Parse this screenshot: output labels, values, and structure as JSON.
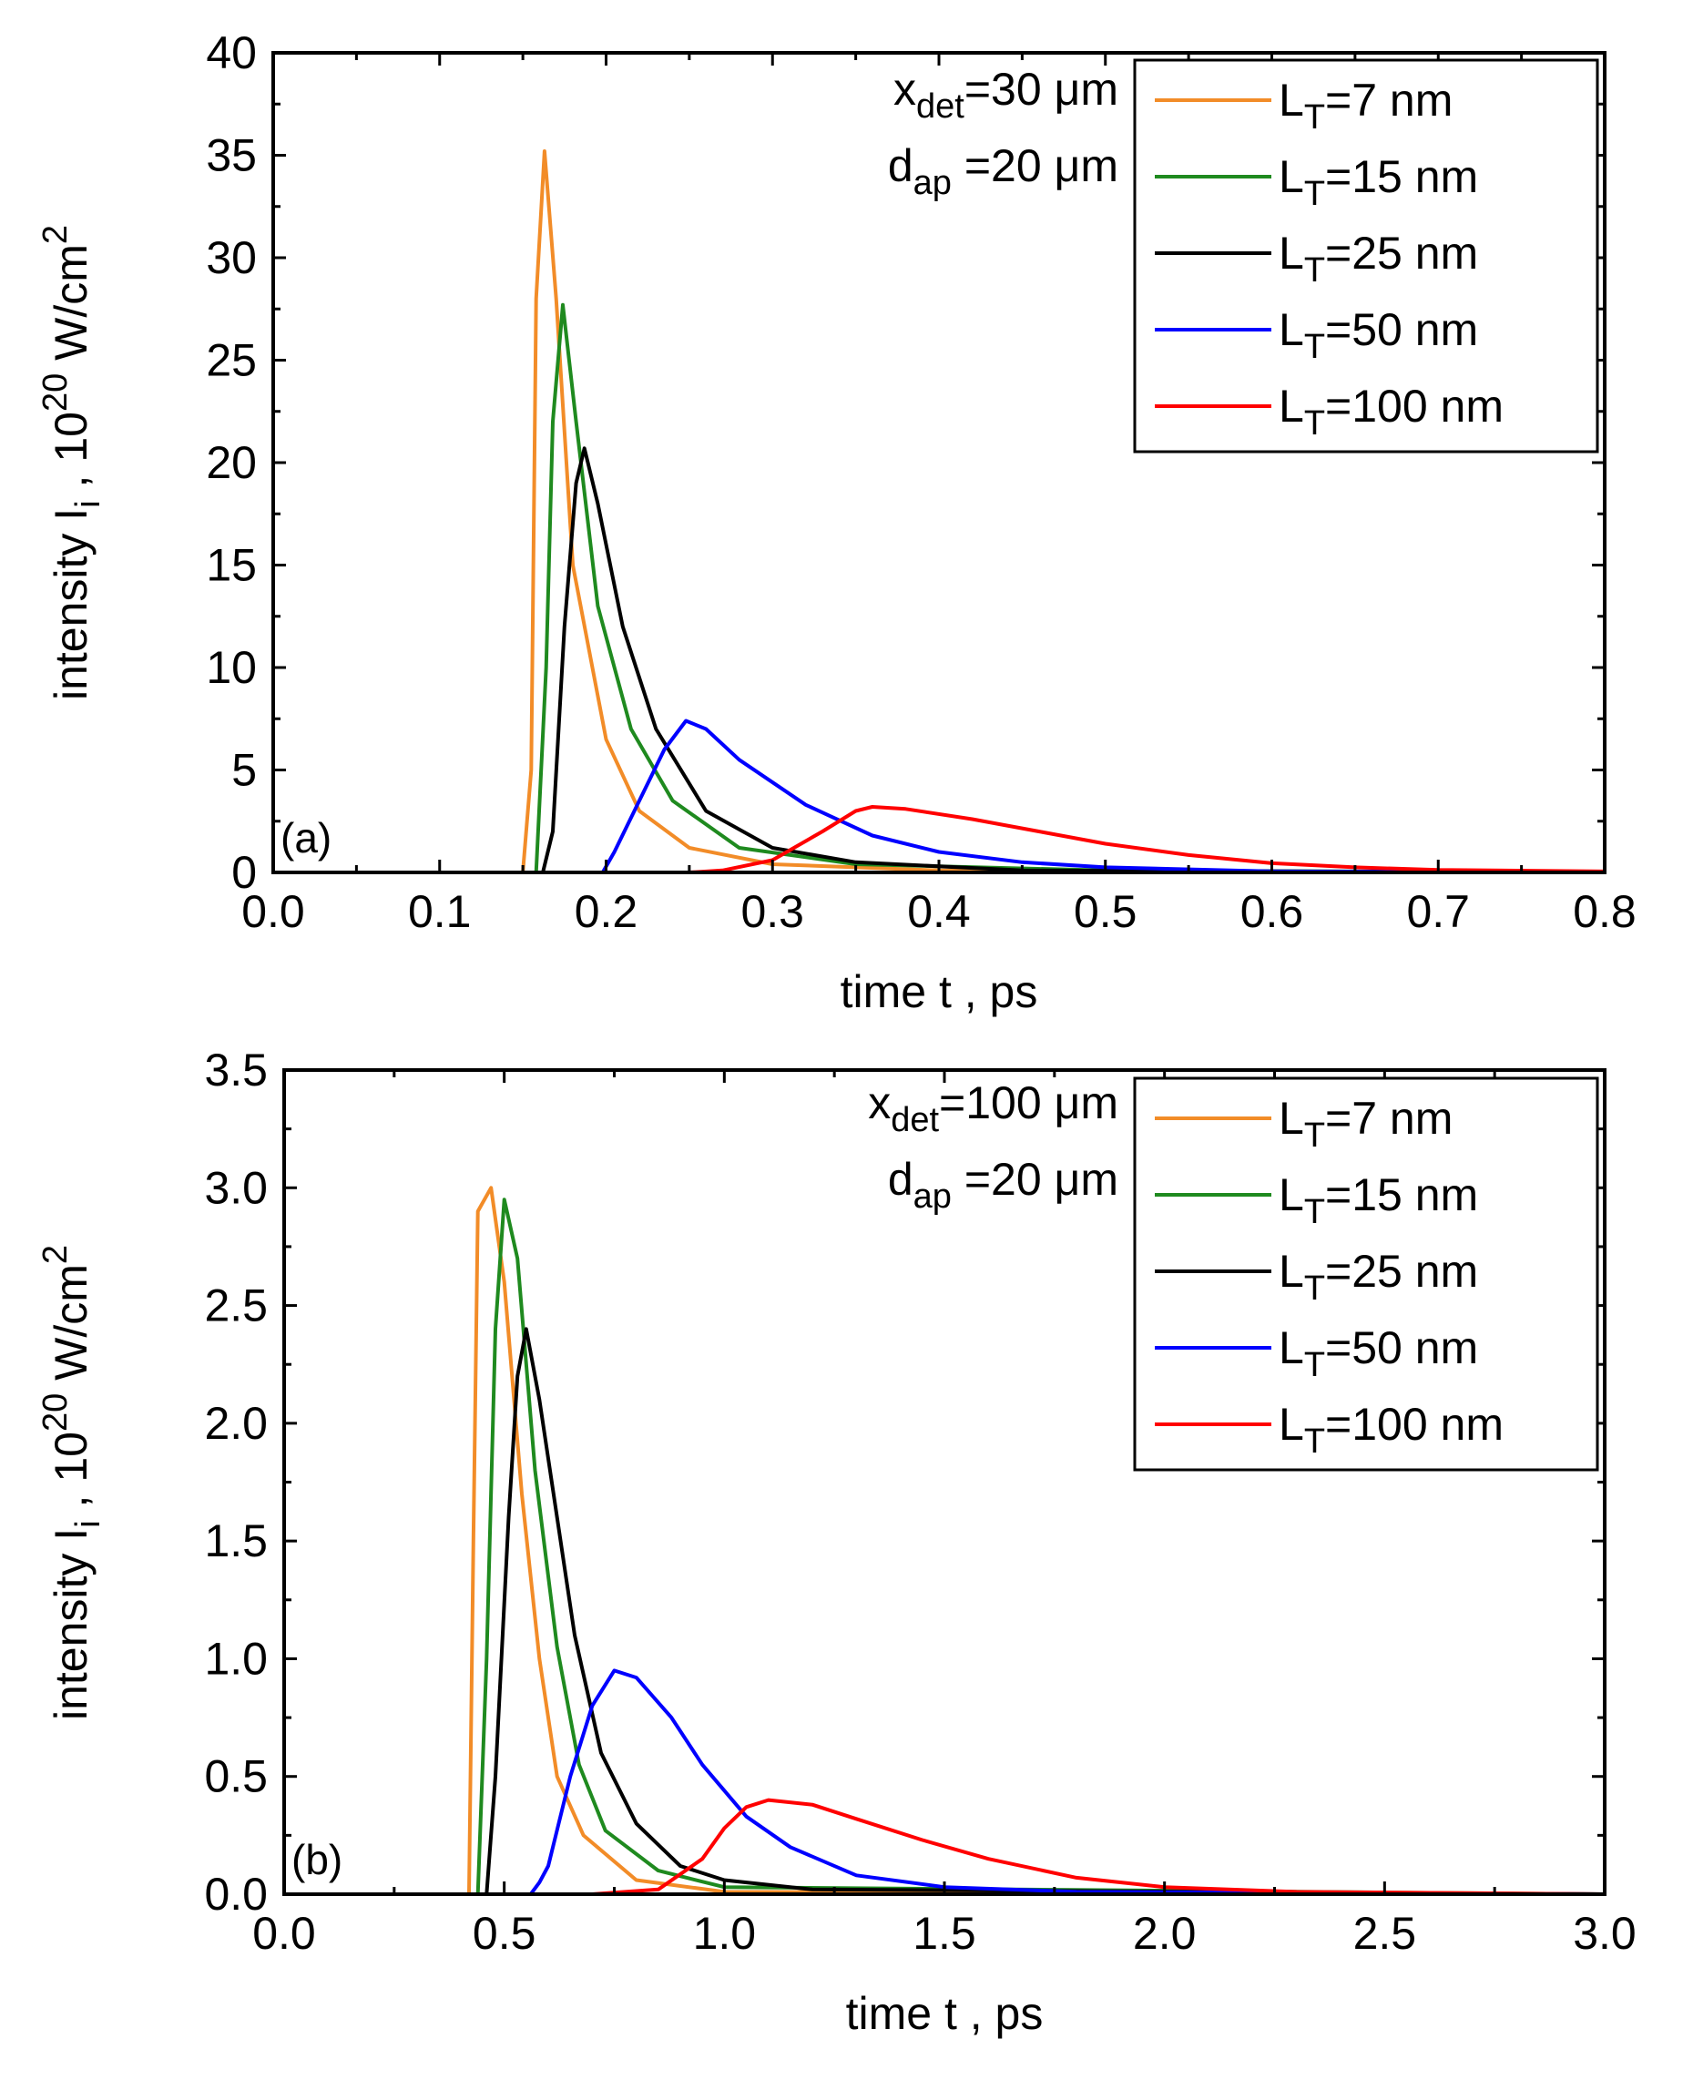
{
  "chart_data": [
    {
      "type": "line",
      "panel_label": "(a)",
      "xlabel": "time t , ps",
      "ylabel": {
        "main": "intensity I",
        "sub": "i",
        "mid": " , 10",
        "sup": "20",
        "unit": " W/cm",
        "sup2": "2"
      },
      "xlim": [
        0.0,
        0.8
      ],
      "ylim": [
        0,
        40
      ],
      "xticks": [
        "0.0",
        "0.1",
        "0.2",
        "0.3",
        "0.4",
        "0.5",
        "0.6",
        "0.7",
        "0.8"
      ],
      "xtick_values": [
        0.0,
        0.1,
        0.2,
        0.3,
        0.4,
        0.5,
        0.6,
        0.7,
        0.8
      ],
      "yticks": [
        "0",
        "5",
        "10",
        "15",
        "20",
        "25",
        "30",
        "35",
        "40"
      ],
      "ytick_values": [
        0,
        5,
        10,
        15,
        20,
        25,
        30,
        35,
        40
      ],
      "annotation": [
        {
          "base": "x",
          "sub": "det",
          "rest": "=30 μm"
        },
        {
          "base": "d",
          "sub": "ap",
          "rest": " =20 μm"
        }
      ],
      "legend_position": "top-right",
      "series": [
        {
          "name": "L_T=7 nm",
          "label_base": "L",
          "label_sub": "T",
          "label_rest": "=7 nm",
          "color": "#f28c28",
          "points": [
            [
              0.0,
              0
            ],
            [
              0.15,
              0
            ],
            [
              0.155,
              5
            ],
            [
              0.158,
              28
            ],
            [
              0.163,
              35.2
            ],
            [
              0.17,
              28
            ],
            [
              0.18,
              15
            ],
            [
              0.2,
              6.5
            ],
            [
              0.22,
              3
            ],
            [
              0.25,
              1.2
            ],
            [
              0.3,
              0.4
            ],
            [
              0.4,
              0.1
            ],
            [
              0.8,
              0
            ]
          ]
        },
        {
          "name": "L_T=15 nm",
          "label_base": "L",
          "label_sub": "T",
          "label_rest": "=15 nm",
          "color": "#1f8a1f",
          "points": [
            [
              0.0,
              0
            ],
            [
              0.158,
              0
            ],
            [
              0.164,
              10
            ],
            [
              0.168,
              22
            ],
            [
              0.174,
              27.7
            ],
            [
              0.182,
              22
            ],
            [
              0.195,
              13
            ],
            [
              0.215,
              7
            ],
            [
              0.24,
              3.5
            ],
            [
              0.28,
              1.2
            ],
            [
              0.35,
              0.4
            ],
            [
              0.5,
              0.1
            ],
            [
              0.8,
              0
            ]
          ]
        },
        {
          "name": "L_T=25 nm",
          "label_base": "L",
          "label_sub": "T",
          "label_rest": "=25 nm",
          "color": "#000000",
          "points": [
            [
              0.0,
              0
            ],
            [
              0.162,
              0
            ],
            [
              0.168,
              2
            ],
            [
              0.175,
              12
            ],
            [
              0.182,
              19
            ],
            [
              0.187,
              20.7
            ],
            [
              0.195,
              18
            ],
            [
              0.21,
              12
            ],
            [
              0.23,
              7
            ],
            [
              0.26,
              3
            ],
            [
              0.3,
              1.2
            ],
            [
              0.35,
              0.5
            ],
            [
              0.45,
              0.1
            ],
            [
              0.8,
              0
            ]
          ]
        },
        {
          "name": "L_T=50 nm",
          "label_base": "L",
          "label_sub": "T",
          "label_rest": "=50 nm",
          "color": "#0000ff",
          "points": [
            [
              0.0,
              0
            ],
            [
              0.198,
              0
            ],
            [
              0.205,
              1
            ],
            [
              0.22,
              3.5
            ],
            [
              0.235,
              6
            ],
            [
              0.248,
              7.4
            ],
            [
              0.26,
              7
            ],
            [
              0.28,
              5.5
            ],
            [
              0.32,
              3.3
            ],
            [
              0.36,
              1.8
            ],
            [
              0.4,
              1
            ],
            [
              0.45,
              0.5
            ],
            [
              0.5,
              0.25
            ],
            [
              0.6,
              0.05
            ],
            [
              0.8,
              0
            ]
          ]
        },
        {
          "name": "L_T=100 nm",
          "label_base": "L",
          "label_sub": "T",
          "label_rest": "=100 nm",
          "color": "#ff0000",
          "points": [
            [
              0.0,
              0
            ],
            [
              0.25,
              0
            ],
            [
              0.27,
              0.1
            ],
            [
              0.3,
              0.6
            ],
            [
              0.33,
              2
            ],
            [
              0.35,
              3
            ],
            [
              0.36,
              3.2
            ],
            [
              0.38,
              3.1
            ],
            [
              0.42,
              2.6
            ],
            [
              0.46,
              2
            ],
            [
              0.5,
              1.4
            ],
            [
              0.55,
              0.85
            ],
            [
              0.6,
              0.45
            ],
            [
              0.65,
              0.25
            ],
            [
              0.7,
              0.12
            ],
            [
              0.8,
              0.05
            ]
          ]
        }
      ]
    },
    {
      "type": "line",
      "panel_label": "(b)",
      "xlabel": "time t , ps",
      "ylabel": {
        "main": "intensity I",
        "sub": "i",
        "mid": " , 10",
        "sup": "20",
        "unit": " W/cm",
        "sup2": "2"
      },
      "xlim": [
        0.0,
        3.0
      ],
      "ylim": [
        0,
        3.5
      ],
      "xticks": [
        "0.0",
        "0.5",
        "1.0",
        "1.5",
        "2.0",
        "2.5",
        "3.0"
      ],
      "xtick_values": [
        0.0,
        0.5,
        1.0,
        1.5,
        2.0,
        2.5,
        3.0
      ],
      "yticks": [
        "0.0",
        "0.5",
        "1.0",
        "1.5",
        "2.0",
        "2.5",
        "3.0",
        "3.5"
      ],
      "ytick_values": [
        0.0,
        0.5,
        1.0,
        1.5,
        2.0,
        2.5,
        3.0,
        3.5
      ],
      "annotation": [
        {
          "base": "x",
          "sub": "det",
          "rest": "=100 μm"
        },
        {
          "base": "d",
          "sub": "ap",
          "rest": " =20 μm"
        }
      ],
      "legend_position": "top-right",
      "series": [
        {
          "name": "L_T=7 nm",
          "label_base": "L",
          "label_sub": "T",
          "label_rest": "=7 nm",
          "color": "#f28c28",
          "points": [
            [
              0.0,
              0
            ],
            [
              0.42,
              0
            ],
            [
              0.43,
              1.5
            ],
            [
              0.44,
              2.9
            ],
            [
              0.47,
              3.0
            ],
            [
              0.5,
              2.6
            ],
            [
              0.54,
              1.7
            ],
            [
              0.58,
              1
            ],
            [
              0.62,
              0.5
            ],
            [
              0.68,
              0.25
            ],
            [
              0.8,
              0.06
            ],
            [
              1.0,
              0.01
            ],
            [
              3.0,
              0
            ]
          ]
        },
        {
          "name": "L_T=15 nm",
          "label_base": "L",
          "label_sub": "T",
          "label_rest": "=15 nm",
          "color": "#1f8a1f",
          "points": [
            [
              0.0,
              0
            ],
            [
              0.44,
              0
            ],
            [
              0.46,
              1
            ],
            [
              0.48,
              2.4
            ],
            [
              0.5,
              2.95
            ],
            [
              0.53,
              2.7
            ],
            [
              0.57,
              1.8
            ],
            [
              0.62,
              1.05
            ],
            [
              0.67,
              0.55
            ],
            [
              0.73,
              0.27
            ],
            [
              0.85,
              0.1
            ],
            [
              1.0,
              0.03
            ],
            [
              3.0,
              0
            ]
          ]
        },
        {
          "name": "L_T=25 nm",
          "label_base": "L",
          "label_sub": "T",
          "label_rest": "=25 nm",
          "color": "#000000",
          "points": [
            [
              0.0,
              0
            ],
            [
              0.46,
              0
            ],
            [
              0.48,
              0.5
            ],
            [
              0.51,
              1.6
            ],
            [
              0.53,
              2.2
            ],
            [
              0.55,
              2.4
            ],
            [
              0.58,
              2.1
            ],
            [
              0.62,
              1.6
            ],
            [
              0.66,
              1.1
            ],
            [
              0.72,
              0.6
            ],
            [
              0.8,
              0.3
            ],
            [
              0.9,
              0.12
            ],
            [
              1.0,
              0.06
            ],
            [
              1.2,
              0.02
            ],
            [
              3.0,
              0
            ]
          ]
        },
        {
          "name": "L_T=50 nm",
          "label_base": "L",
          "label_sub": "T",
          "label_rest": "=50 nm",
          "color": "#0000ff",
          "points": [
            [
              0.0,
              0
            ],
            [
              0.56,
              0
            ],
            [
              0.58,
              0.05
            ],
            [
              0.6,
              0.12
            ],
            [
              0.65,
              0.5
            ],
            [
              0.7,
              0.8
            ],
            [
              0.75,
              0.95
            ],
            [
              0.8,
              0.92
            ],
            [
              0.88,
              0.75
            ],
            [
              0.95,
              0.55
            ],
            [
              1.05,
              0.33
            ],
            [
              1.15,
              0.2
            ],
            [
              1.3,
              0.08
            ],
            [
              1.5,
              0.03
            ],
            [
              1.8,
              0.01
            ],
            [
              3.0,
              0
            ]
          ]
        },
        {
          "name": "L_T=100 nm",
          "label_base": "L",
          "label_sub": "T",
          "label_rest": "=100 nm",
          "color": "#ff0000",
          "points": [
            [
              0.0,
              0
            ],
            [
              0.7,
              0
            ],
            [
              0.85,
              0.02
            ],
            [
              0.95,
              0.15
            ],
            [
              1.0,
              0.28
            ],
            [
              1.05,
              0.37
            ],
            [
              1.1,
              0.4
            ],
            [
              1.2,
              0.38
            ],
            [
              1.3,
              0.32
            ],
            [
              1.45,
              0.23
            ],
            [
              1.6,
              0.15
            ],
            [
              1.8,
              0.07
            ],
            [
              2.0,
              0.03
            ],
            [
              2.3,
              0.01
            ],
            [
              3.0,
              0
            ]
          ]
        }
      ]
    }
  ]
}
